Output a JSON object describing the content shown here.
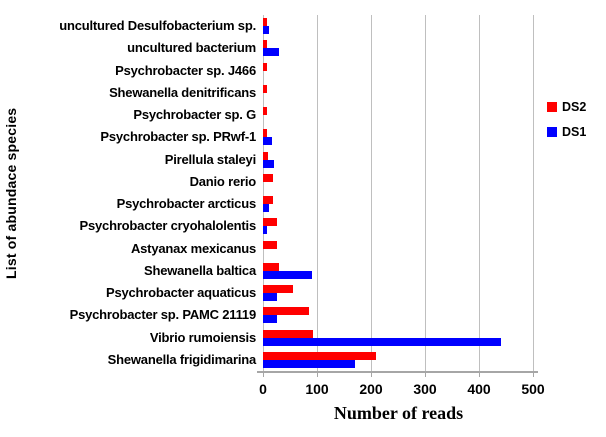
{
  "figure_title": "",
  "axes": {
    "ylabel": "List of abundace species",
    "xlabel": "Number of reads"
  },
  "colors": {
    "ds2": "#ff0000",
    "ds1": "#0000ff",
    "gridline": "#bfbfbf",
    "axis_line": "#a6a6a6",
    "text": "#000000",
    "background": "#ffffff"
  },
  "chart_data": {
    "type": "bar",
    "orientation": "horizontal",
    "title": "",
    "xlabel": "Number of reads",
    "ylabel": "List of abundace species",
    "xlim": [
      0,
      500
    ],
    "xticks": [
      0,
      100,
      200,
      300,
      400,
      500
    ],
    "grid": true,
    "legend_position": "right",
    "categories": [
      "uncultured Desulfobacterium sp.",
      "uncultured bacterium",
      "Psychrobacter sp. J466",
      "Shewanella denitrificans",
      "Psychrobacter sp. G",
      "Psychrobacter sp. PRwf-1",
      "Pirellula staleyi",
      "Danio rerio",
      "Psychrobacter arcticus",
      "Psychrobacter cryohalolentis",
      "Astyanax mexicanus",
      "Shewanella baltica",
      "Psychrobacter aquaticus",
      "Psychrobacter sp. PAMC 21119",
      "Vibrio rumoiensis",
      "Shewanella frigidimarina"
    ],
    "series": [
      {
        "name": "DS2",
        "color": "#ff0000",
        "values": [
          8,
          7,
          8,
          8,
          7,
          8,
          10,
          18,
          18,
          26,
          26,
          30,
          55,
          85,
          92,
          210
        ]
      },
      {
        "name": "DS1",
        "color": "#0000ff",
        "values": [
          12,
          30,
          0,
          0,
          0,
          16,
          20,
          0,
          12,
          8,
          0,
          90,
          26,
          25,
          440,
          170
        ]
      }
    ]
  }
}
